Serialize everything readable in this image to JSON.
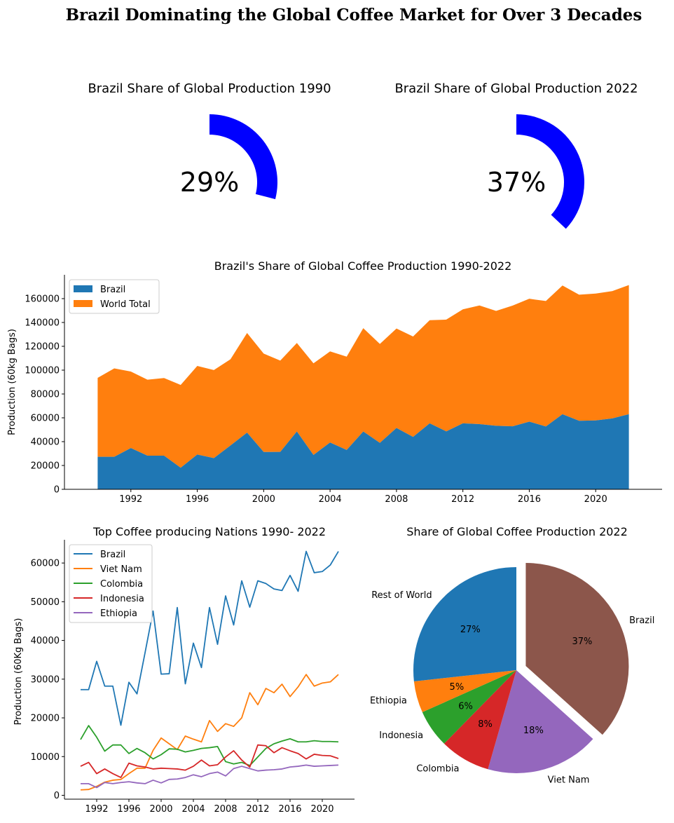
{
  "title": "Brazil Dominating the Global Coffee Market for Over 3 Decades",
  "gauges": [
    {
      "title": "Brazil Share of Global Production 1990",
      "label": "29%",
      "value": 0.29,
      "color": "#0000ff"
    },
    {
      "title": "Brazil Share of Global Production 2022",
      "label": "37%",
      "value": 0.37,
      "color": "#0000ff"
    }
  ],
  "chart_data": [
    {
      "type": "area",
      "title": "Brazil's Share of Global Coffee Production 1990-2022",
      "xlabel": "",
      "ylabel": "Production (60kg Bags)",
      "xlim": [
        1988,
        2024
      ],
      "ylim": [
        0,
        180000
      ],
      "xticks": [
        1992,
        1996,
        2000,
        2004,
        2008,
        2012,
        2016,
        2020
      ],
      "xtick_labels": [
        "1992",
        "1996",
        "2000",
        "2004",
        "2008",
        "2012",
        "2016",
        "2020"
      ],
      "yticks": [
        0,
        20000,
        40000,
        60000,
        80000,
        100000,
        120000,
        140000,
        160000
      ],
      "ytick_labels": [
        "0",
        "20000",
        "40000",
        "60000",
        "80000",
        "100000",
        "120000",
        "140000",
        "160000"
      ],
      "legend": "upper-left",
      "x": [
        1990,
        1991,
        1992,
        1993,
        1994,
        1995,
        1996,
        1997,
        1998,
        1999,
        2000,
        2001,
        2002,
        2003,
        2004,
        2005,
        2006,
        2007,
        2008,
        2009,
        2010,
        2011,
        2012,
        2013,
        2014,
        2015,
        2016,
        2017,
        2018,
        2019,
        2020,
        2021,
        2022
      ],
      "series": [
        {
          "name": "Brazil",
          "color": "#1f77b4",
          "values": [
            27300,
            27300,
            34600,
            28200,
            28200,
            18100,
            29200,
            26200,
            36800,
            47600,
            31300,
            31400,
            48500,
            28800,
            39300,
            33000,
            48500,
            39000,
            51500,
            44000,
            55400,
            48600,
            55400,
            54700,
            53300,
            52900,
            56800,
            52700,
            63000,
            57500,
            57800,
            59500,
            63000
          ]
        },
        {
          "name": "World Total",
          "color": "#ff7f0e",
          "values": [
            93500,
            101500,
            98800,
            92000,
            93400,
            87600,
            103500,
            100100,
            109100,
            131200,
            113900,
            108000,
            122800,
            105700,
            115700,
            111300,
            135200,
            122000,
            134900,
            128200,
            141900,
            142400,
            151000,
            154300,
            149700,
            154200,
            159900,
            158000,
            171000,
            163300,
            164300,
            166300,
            171400
          ]
        }
      ]
    },
    {
      "type": "line",
      "title": "Top Coffee producing Nations 1990- 2022",
      "xlabel": "",
      "ylabel": "Production (60Kg Bags)",
      "xlim": [
        1988,
        2024
      ],
      "ylim": [
        -1000,
        66000
      ],
      "xticks": [
        1992,
        1996,
        2000,
        2004,
        2008,
        2012,
        2016,
        2020
      ],
      "xtick_labels": [
        "1992",
        "1996",
        "2000",
        "2004",
        "2008",
        "2012",
        "2016",
        "2020"
      ],
      "yticks": [
        0,
        10000,
        20000,
        30000,
        40000,
        50000,
        60000
      ],
      "ytick_labels": [
        "0",
        "10000",
        "20000",
        "30000",
        "40000",
        "50000",
        "60000"
      ],
      "legend": "upper-left",
      "x": [
        1990,
        1991,
        1992,
        1993,
        1994,
        1995,
        1996,
        1997,
        1998,
        1999,
        2000,
        2001,
        2002,
        2003,
        2004,
        2005,
        2006,
        2007,
        2008,
        2009,
        2010,
        2011,
        2012,
        2013,
        2014,
        2015,
        2016,
        2017,
        2018,
        2019,
        2020,
        2021,
        2022
      ],
      "series": [
        {
          "name": "Brazil",
          "color": "#1f77b4",
          "values": [
            27300,
            27300,
            34600,
            28200,
            28200,
            18100,
            29200,
            26200,
            36800,
            47600,
            31300,
            31400,
            48500,
            28800,
            39300,
            33000,
            48500,
            39000,
            51500,
            44000,
            55400,
            48600,
            55400,
            54700,
            53300,
            52900,
            56800,
            52700,
            63000,
            57500,
            57800,
            59500,
            63000
          ]
        },
        {
          "name": "Viet Nam",
          "color": "#ff7f0e",
          "values": [
            1400,
            1500,
            2300,
            3400,
            3900,
            4100,
            5600,
            7000,
            7000,
            11600,
            14800,
            13300,
            11800,
            15300,
            14500,
            13800,
            19300,
            16500,
            18500,
            17800,
            20000,
            26500,
            23400,
            27600,
            26500,
            28700,
            25500,
            28000,
            31200,
            28200,
            29000,
            29300,
            31200
          ]
        },
        {
          "name": "Colombia",
          "color": "#2ca02c",
          "values": [
            14400,
            18000,
            15000,
            11400,
            13000,
            13000,
            10800,
            12100,
            11000,
            9400,
            10500,
            12000,
            11900,
            11200,
            11600,
            12100,
            12300,
            12600,
            8700,
            8100,
            8500,
            7700,
            9900,
            12100,
            13300,
            14000,
            14600,
            13800,
            13800,
            14100,
            13900,
            13900,
            13800
          ]
        },
        {
          "name": "Indonesia",
          "color": "#d62728",
          "values": [
            7500,
            8500,
            5600,
            6800,
            5600,
            4600,
            8300,
            7600,
            7300,
            6800,
            7000,
            6900,
            6800,
            6500,
            7500,
            9100,
            7600,
            7900,
            9900,
            11500,
            9100,
            7300,
            13000,
            12800,
            11000,
            12300,
            11500,
            10800,
            9400,
            10600,
            10300,
            10200,
            9500
          ]
        },
        {
          "name": "Ethiopia",
          "color": "#9467bd",
          "values": [
            3000,
            3000,
            2000,
            3300,
            3000,
            3300,
            3500,
            3200,
            3000,
            3900,
            3200,
            4100,
            4200,
            4600,
            5300,
            4800,
            5600,
            6000,
            5000,
            6900,
            7500,
            6900,
            6300,
            6500,
            6600,
            6800,
            7300,
            7500,
            7800,
            7500,
            7600,
            7700,
            7800
          ]
        }
      ]
    },
    {
      "type": "pie",
      "title": "Share of Global Coffee Production 2022",
      "slices": [
        {
          "label": "Brazil",
          "pct": 37,
          "pct_label": "37%",
          "color": "#8c564b",
          "explode": true
        },
        {
          "label": "Viet Nam",
          "pct": 18,
          "pct_label": "18%",
          "color": "#9467bd",
          "explode": false
        },
        {
          "label": "Colombia",
          "pct": 8,
          "pct_label": "8%",
          "color": "#d62728",
          "explode": false
        },
        {
          "label": "Indonesia",
          "pct": 6,
          "pct_label": "6%",
          "color": "#2ca02c",
          "explode": false
        },
        {
          "label": "Ethiopia",
          "pct": 5,
          "pct_label": "5%",
          "color": "#ff7f0e",
          "explode": false
        },
        {
          "label": "Rest of World",
          "pct": 27,
          "pct_label": "27%",
          "color": "#1f77b4",
          "explode": false
        }
      ]
    }
  ]
}
